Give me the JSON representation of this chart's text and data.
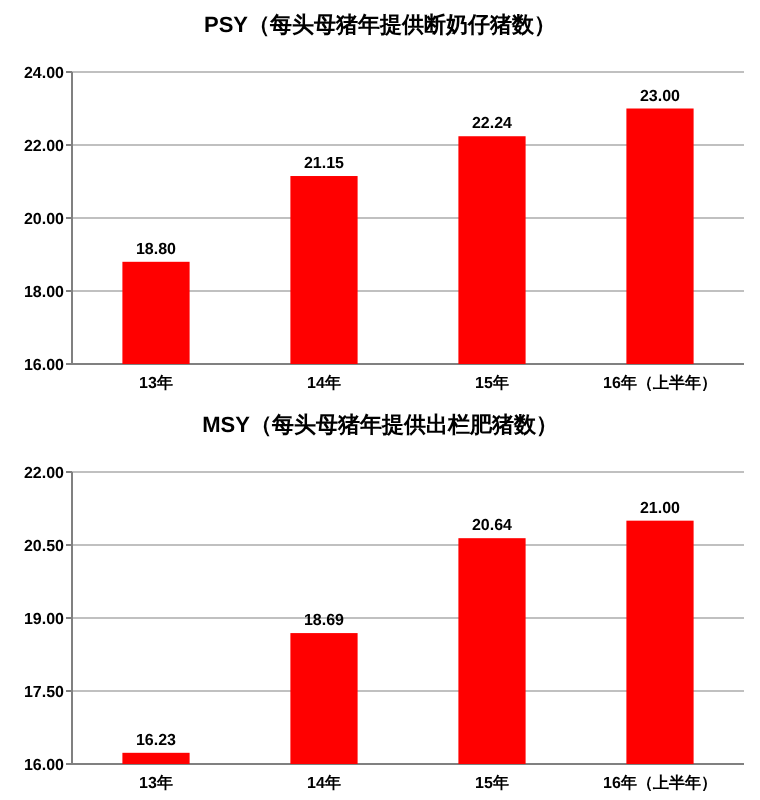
{
  "chart_data": [
    {
      "type": "bar",
      "title": "PSY（每头母猪年提供断奶仔猪数）",
      "categories": [
        "13年",
        "14年",
        "15年",
        "16年（上半年）"
      ],
      "values": [
        18.8,
        21.15,
        22.24,
        23.0
      ],
      "value_labels": [
        "18.80",
        "21.15",
        "22.24",
        "23.00"
      ],
      "color": "#ff0000",
      "ylim": [
        16,
        24
      ],
      "yticks": [
        {
          "value": 16,
          "label": "16.00"
        },
        {
          "value": 18,
          "label": "18.00"
        },
        {
          "value": 20,
          "label": "20.00"
        },
        {
          "value": 22,
          "label": "22.00"
        },
        {
          "value": 24,
          "label": "24.00"
        }
      ],
      "grid": "y"
    },
    {
      "type": "bar",
      "title": "MSY（每头母猪年提供出栏肥猪数）",
      "categories": [
        "13年",
        "14年",
        "15年",
        "16年（上半年）"
      ],
      "values": [
        16.23,
        18.69,
        20.64,
        21.0
      ],
      "value_labels": [
        "16.23",
        "18.69",
        "20.64",
        "21.00"
      ],
      "color": "#ff0000",
      "ylim": [
        16,
        22
      ],
      "yticks": [
        {
          "value": 16,
          "label": "16.00"
        },
        {
          "value": 17.5,
          "label": "17.50"
        },
        {
          "value": 19,
          "label": "19.00"
        },
        {
          "value": 20.5,
          "label": "20.50"
        },
        {
          "value": 22,
          "label": "22.00"
        }
      ],
      "grid": "y"
    }
  ]
}
